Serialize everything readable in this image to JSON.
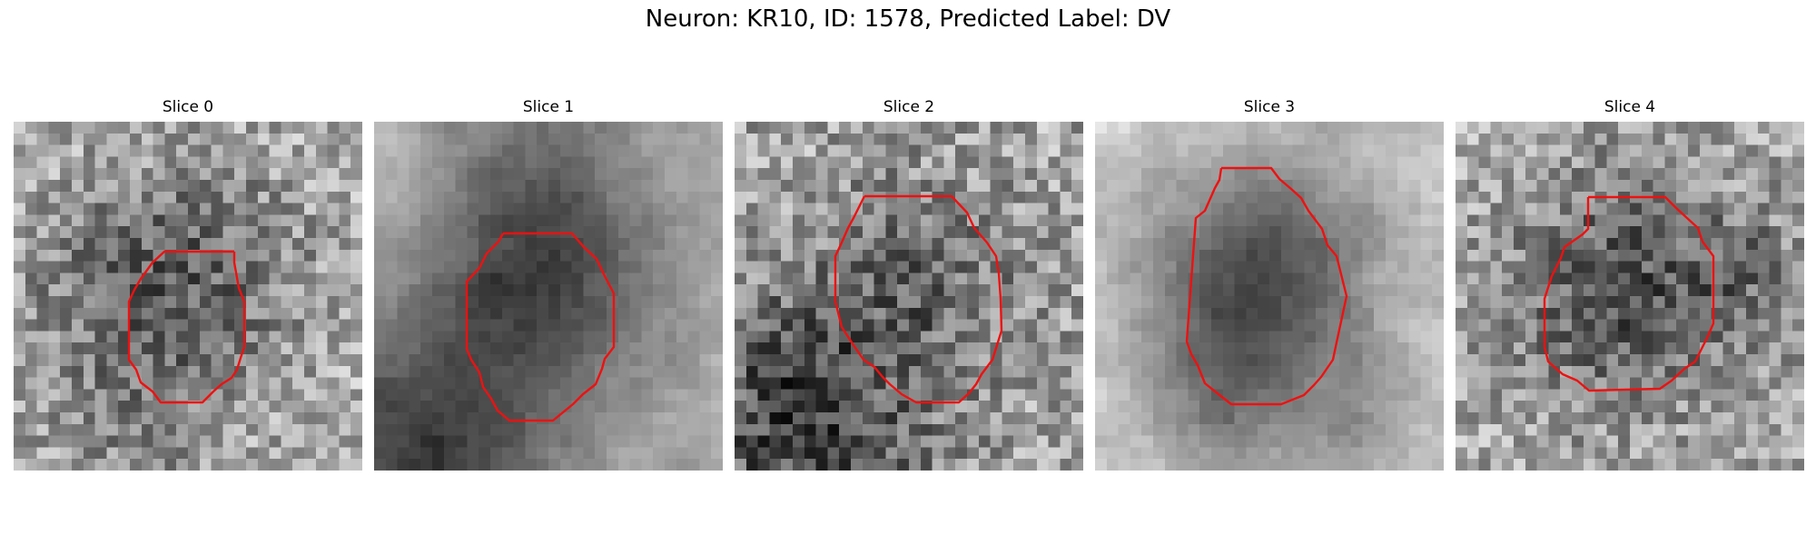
{
  "figure": {
    "title": "Neuron: KR10, ID: 1578, Predicted Label: DV",
    "outline_color": "#ee1111",
    "colormap": "grayscale"
  },
  "panels": [
    {
      "title": "Slice 0",
      "image_description": "noisy grayscale patch with a darker textured region centered slightly right; red outline around the central dark cell"
    },
    {
      "title": "Slice 1",
      "image_description": "blurred grayscale patch with a large dark cell body near center and dark corner at lower left; red outline around the cell"
    },
    {
      "title": "Slice 2",
      "image_description": "noisy grayscale patch with a medium-dark cell body near center; red outline around it; dark band along bottom"
    },
    {
      "title": "Slice 3",
      "image_description": "grayscale patch with very dark cell body on light background; red outline around the cell"
    },
    {
      "title": "Slice 4",
      "image_description": "noisy grayscale patch with dark cell body at center; red outline around it"
    }
  ]
}
